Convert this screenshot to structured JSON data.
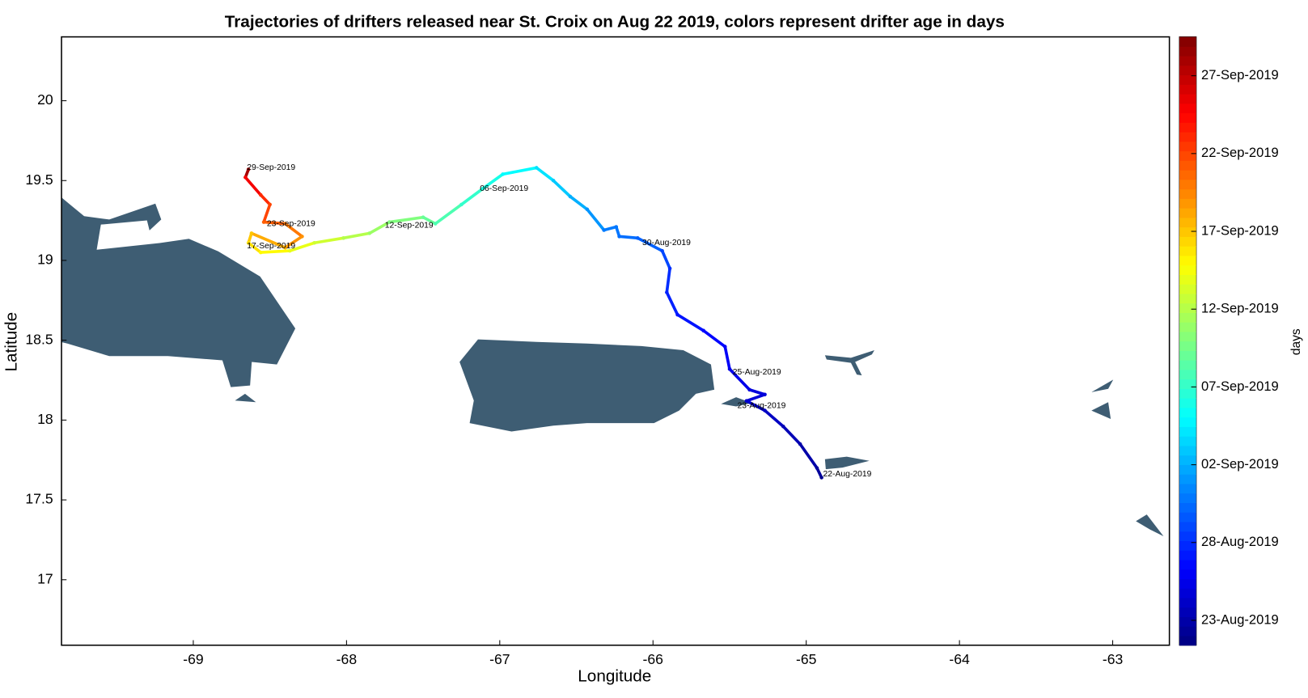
{
  "chart_data": {
    "type": "trajectory",
    "title": "Trajectories of drifters released near St. Croix on Aug 22 2019, colors represent drifter age in days",
    "xlabel": "Longitude",
    "ylabel": "Latitude",
    "colorbar_label": "days",
    "colormap": "jet",
    "land_color": "#3e5d73",
    "xlim": [
      -69.86,
      -62.63
    ],
    "ylim": [
      16.59,
      20.4
    ],
    "xticks": [
      -69,
      -68,
      -67,
      -66,
      -65,
      -64,
      -63
    ],
    "yticks": [
      17,
      17.5,
      18,
      18.5,
      19,
      19.5,
      20
    ],
    "clim": [
      -0.6,
      38.5
    ],
    "cticks": [
      {
        "value": 1,
        "label": "23-Aug-2019"
      },
      {
        "value": 6,
        "label": "28-Aug-2019"
      },
      {
        "value": 11,
        "label": "02-Sep-2019"
      },
      {
        "value": 16,
        "label": "07-Sep-2019"
      },
      {
        "value": 21,
        "label": "12-Sep-2019"
      },
      {
        "value": 26,
        "label": "17-Sep-2019"
      },
      {
        "value": 31,
        "label": "22-Sep-2019"
      },
      {
        "value": 36,
        "label": "27-Sep-2019"
      }
    ],
    "lon": [
      -64.9,
      -64.93,
      -65.04,
      -65.15,
      -65.27,
      -65.39,
      -65.27,
      -65.37,
      -65.5,
      -65.53,
      -65.67,
      -65.84,
      -65.91,
      -65.89,
      -65.94,
      -66.1,
      -66.22,
      -66.24,
      -66.32,
      -66.43,
      -66.54,
      -66.65,
      -66.76,
      -66.98,
      -67.11,
      -67.25,
      -67.42,
      -67.5,
      -67.72,
      -67.85,
      -68.02,
      -68.21,
      -68.37,
      -68.56,
      -68.64,
      -68.62,
      -68.4,
      -68.29,
      -68.4,
      -68.54,
      -68.5,
      -68.56,
      -68.66,
      -68.64
    ],
    "lat": [
      17.64,
      17.7,
      17.85,
      17.96,
      18.06,
      18.12,
      18.16,
      18.19,
      18.32,
      18.46,
      18.56,
      18.66,
      18.8,
      18.95,
      19.06,
      19.14,
      19.15,
      19.21,
      19.19,
      19.32,
      19.4,
      19.5,
      19.58,
      19.54,
      19.45,
      19.35,
      19.23,
      19.27,
      19.24,
      19.17,
      19.14,
      19.11,
      19.06,
      19.05,
      19.11,
      19.17,
      19.08,
      19.15,
      19.23,
      19.24,
      19.35,
      19.41,
      19.52,
      19.57
    ],
    "age": [
      0,
      0.5,
      1,
      1.5,
      2,
      2.5,
      2.8,
      3,
      3.5,
      4,
      4.5,
      5,
      5.5,
      6,
      7,
      8,
      8.5,
      8.8,
      9,
      10,
      11,
      12,
      13,
      14,
      15,
      16,
      17,
      18,
      19,
      20,
      21,
      22,
      23,
      24,
      25,
      26,
      27,
      28,
      29,
      30,
      31,
      32,
      34,
      37
    ],
    "labels": [
      {
        "text": "29-Sep-2019",
        "lon": -68.65,
        "lat": 19.58
      },
      {
        "text": "23-Sep-2019",
        "lon": -68.52,
        "lat": 19.23
      },
      {
        "text": "17-Sep-2019",
        "lon": -68.65,
        "lat": 19.09
      },
      {
        "text": "12-Sep-2019",
        "lon": -67.75,
        "lat": 19.22
      },
      {
        "text": "06-Sep-2019",
        "lon": -67.13,
        "lat": 19.45
      },
      {
        "text": "30-Aug-2019",
        "lon": -66.07,
        "lat": 19.11
      },
      {
        "text": "25-Aug-2019",
        "lon": -65.48,
        "lat": 18.3
      },
      {
        "text": "23-Aug-2019",
        "lon": -65.45,
        "lat": 18.09
      },
      {
        "text": "22-Aug-2019",
        "lon": -64.89,
        "lat": 17.66
      }
    ]
  }
}
